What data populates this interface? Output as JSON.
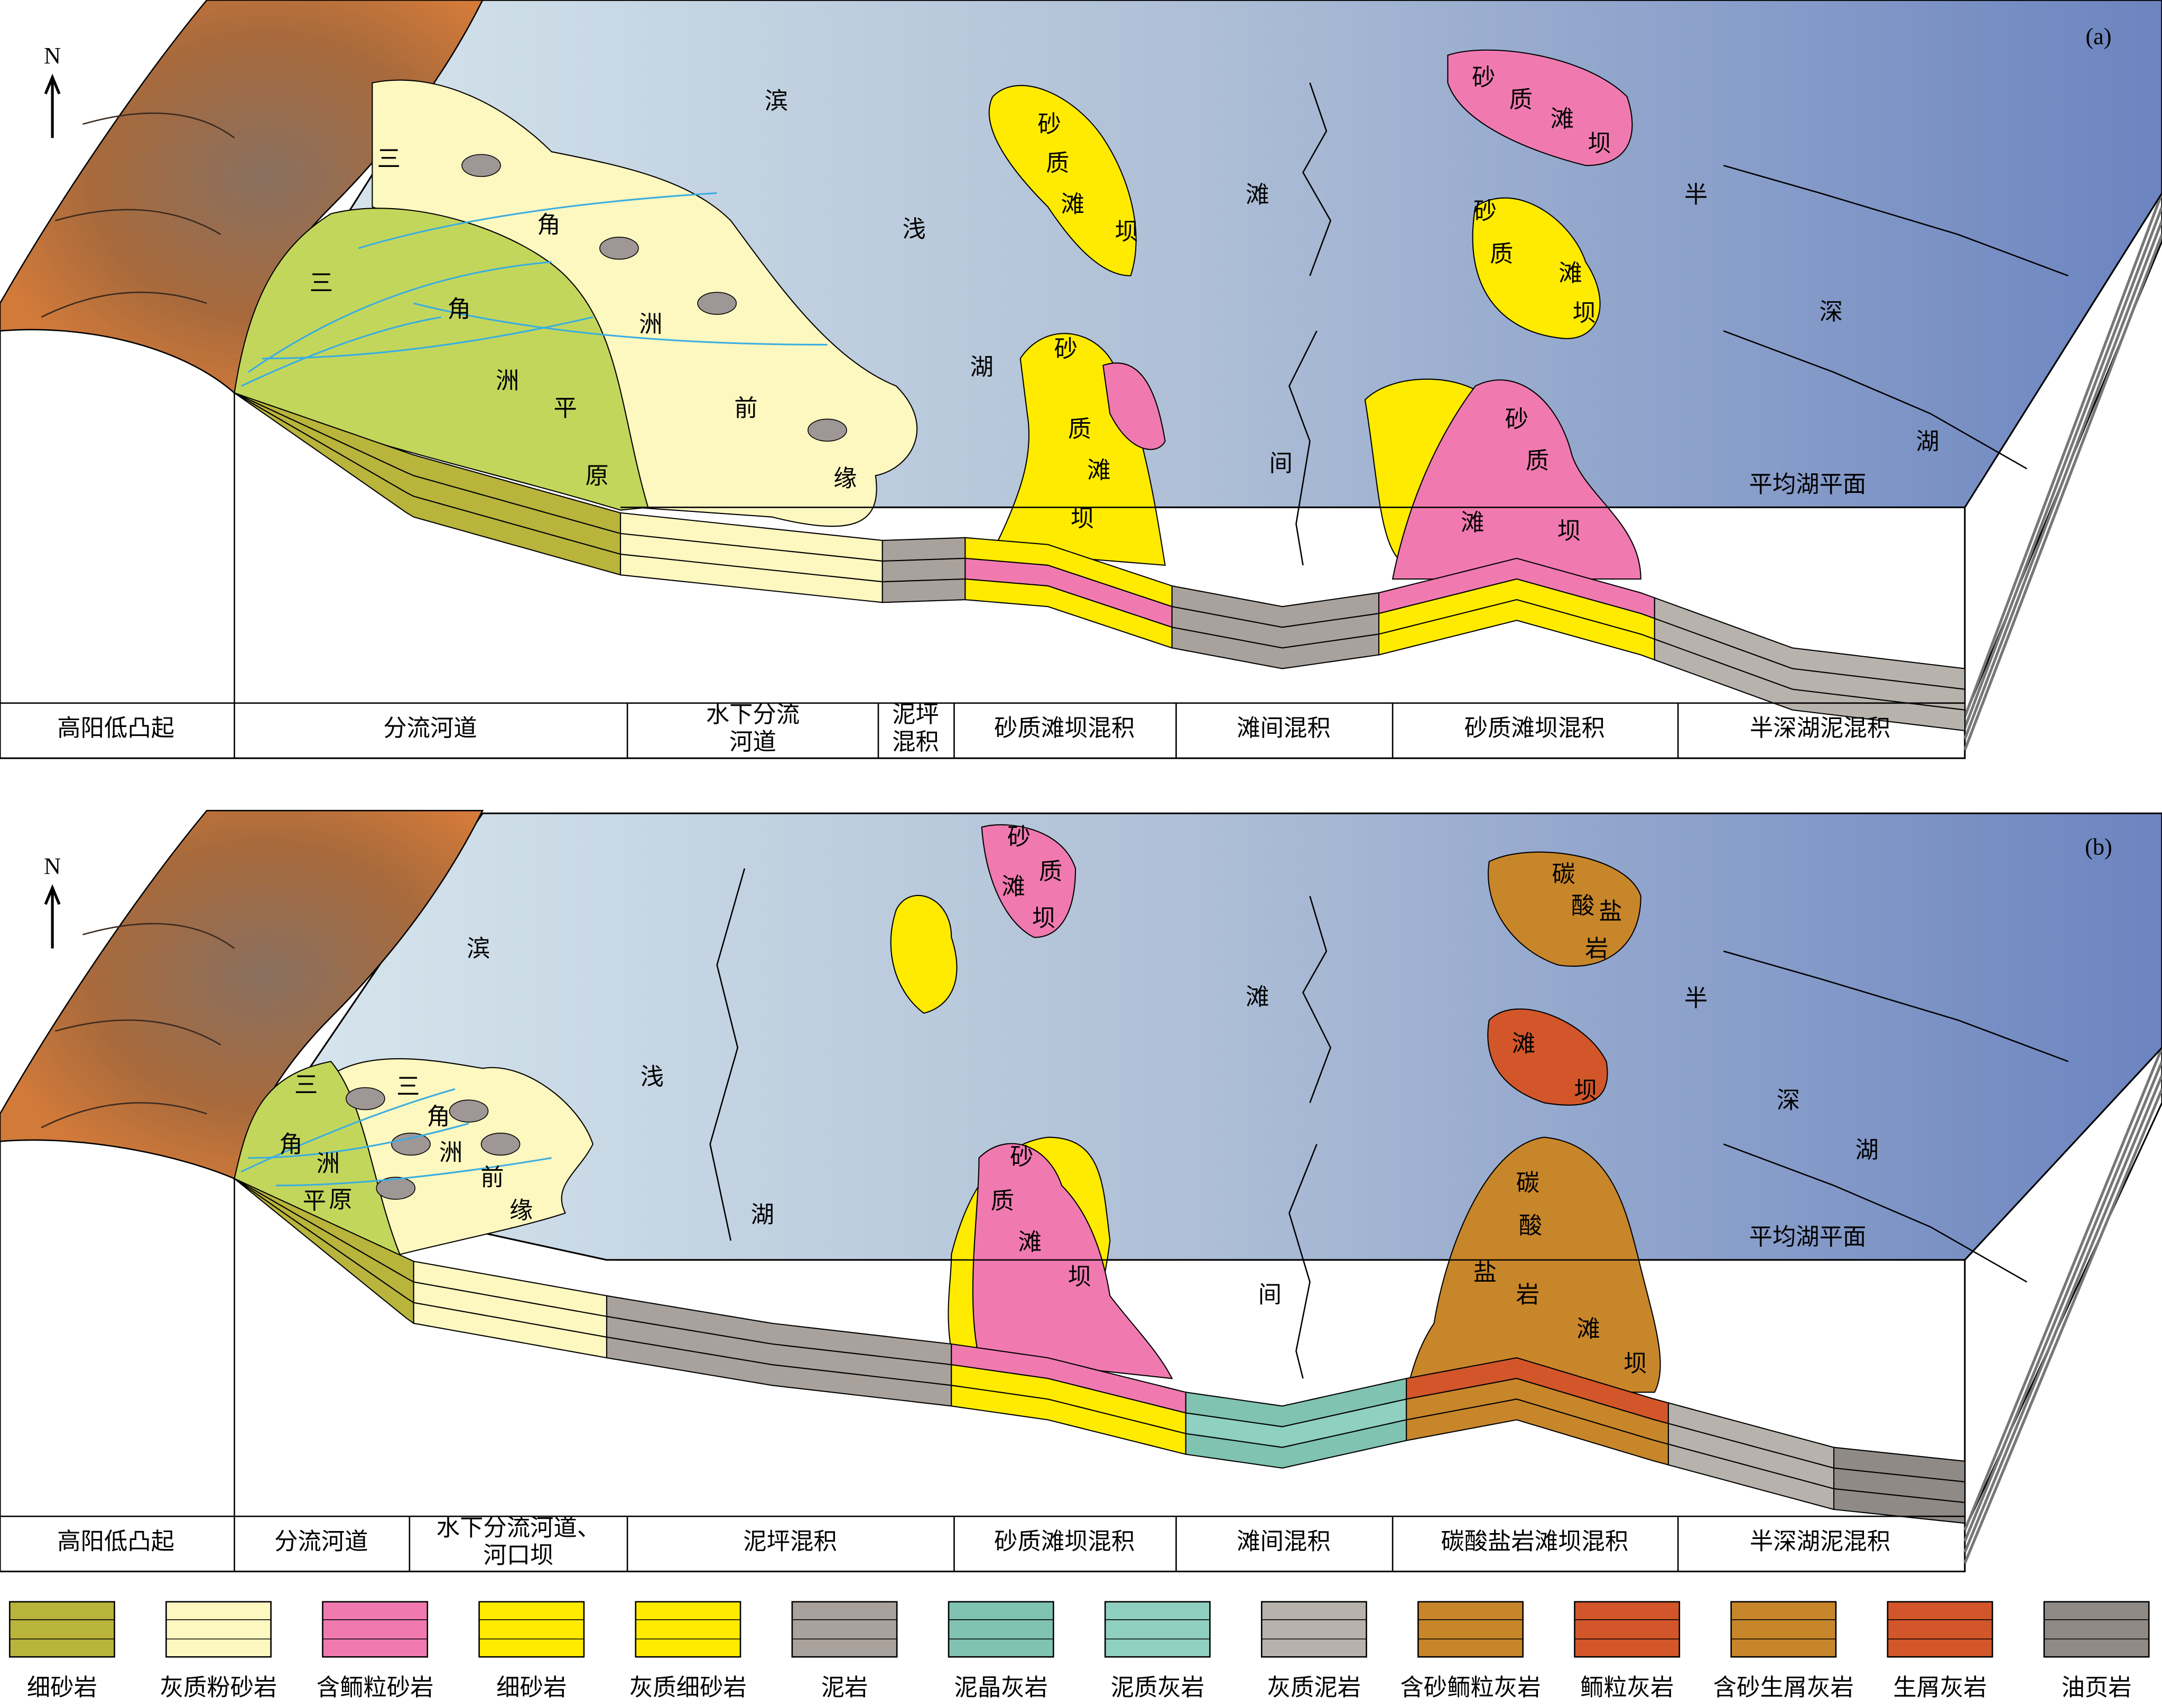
{
  "panels": [
    {
      "label": "(a)",
      "north": "N",
      "map_labels": [
        "滨浅湖",
        "三角洲平原",
        "三角洲前缘",
        "砂质滩坝",
        "砂质滩坝",
        "砂质滩坝",
        "滩间",
        "半深湖",
        "砂质滩坝",
        "砂质滩坝"
      ],
      "lake_level": "平均湖平面",
      "facies": [
        [
          "高阳低凸起"
        ],
        [
          "分流河道"
        ],
        [
          "水下分流",
          "河道"
        ],
        [
          "泥坪",
          "混积"
        ],
        [
          "砂质滩坝混积"
        ],
        [
          "滩间混积"
        ],
        [
          "砂质滩坝混积"
        ],
        [
          "半深湖泥混积"
        ]
      ]
    },
    {
      "label": "(b)",
      "north": "N",
      "map_labels": [
        "滨浅湖",
        "三角洲平原",
        "三角洲前缘",
        "砂质滩坝",
        "碳酸盐岩",
        "滩间",
        "半深湖",
        "滩坝",
        "砂质滩坝",
        "碳酸盐岩滩坝"
      ],
      "lake_level": "平均湖平面",
      "facies": [
        [
          "高阳低凸起"
        ],
        [
          "分流河道"
        ],
        [
          "水下分流河道、",
          "河口坝"
        ],
        [
          "泥坪混积"
        ],
        [
          "砂质滩坝混积"
        ],
        [
          "滩间混积"
        ],
        [
          "碳酸盐岩滩坝混积"
        ],
        [
          "半深湖泥混积"
        ]
      ]
    }
  ],
  "legend": [
    "细砂岩",
    "灰质粉砂岩",
    "含鲕粒砂岩",
    "细砂岩",
    "灰质细砂岩",
    "泥岩",
    "泥晶灰岩",
    "泥质灰岩",
    "灰质泥岩",
    "含砂鲕粒灰岩",
    "鲕粒灰岩",
    "含砂生屑灰岩",
    "生屑灰岩",
    "油页岩"
  ]
}
